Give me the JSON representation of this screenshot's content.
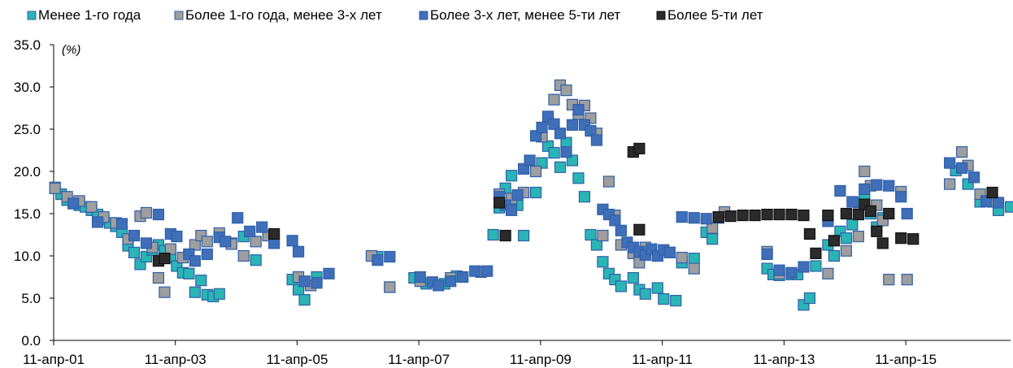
{
  "chart_data": {
    "type": "scatter",
    "title": "",
    "xlabel": "",
    "ylabel": "",
    "unit": "(%)",
    "ylim": [
      0,
      35
    ],
    "yticks": [
      "0.0",
      "5.0",
      "10.0",
      "15.0",
      "20.0",
      "25.0",
      "30.0",
      "35.0"
    ],
    "xlim": [
      2001.278,
      2017.0
    ],
    "xticks": [
      {
        "label": "11-апр-01",
        "x": 2001.278
      },
      {
        "label": "11-апр-03",
        "x": 2003.278
      },
      {
        "label": "11-апр-05",
        "x": 2005.278
      },
      {
        "label": "11-апр-07",
        "x": 2007.278
      },
      {
        "label": "11-апр-09",
        "x": 2009.278
      },
      {
        "label": "11-апр-11",
        "x": 2011.278
      },
      {
        "label": "11-апр-13",
        "x": 2013.278
      },
      {
        "label": "11-апр-15",
        "x": 2015.278
      }
    ],
    "grid": false,
    "legend_position": "top",
    "series": [
      {
        "name": "Менее 1-го года",
        "color": "#2ab5b5",
        "points": [
          [
            2001.3,
            18.1
          ],
          [
            2001.4,
            17.3
          ],
          [
            2001.5,
            16.6
          ],
          [
            2001.6,
            16.2
          ],
          [
            2001.7,
            16.0
          ],
          [
            2001.8,
            15.8
          ],
          [
            2001.9,
            15.4
          ],
          [
            2002.0,
            14.9
          ],
          [
            2002.1,
            14.3
          ],
          [
            2002.2,
            13.9
          ],
          [
            2002.3,
            13.5
          ],
          [
            2002.4,
            12.8
          ],
          [
            2002.5,
            11.2
          ],
          [
            2002.6,
            10.4
          ],
          [
            2002.7,
            9.0
          ],
          [
            2002.8,
            9.9
          ],
          [
            2002.9,
            10.7
          ],
          [
            2003.0,
            11.3
          ],
          [
            2003.1,
            10.6
          ],
          [
            2003.2,
            9.8
          ],
          [
            2003.3,
            8.8
          ],
          [
            2003.4,
            8.0
          ],
          [
            2003.5,
            7.9
          ],
          [
            2003.6,
            5.7
          ],
          [
            2003.7,
            7.1
          ],
          [
            2003.8,
            5.4
          ],
          [
            2003.9,
            5.2
          ],
          [
            2004.0,
            5.5
          ],
          [
            2004.2,
            11.5
          ],
          [
            2004.4,
            12.3
          ],
          [
            2004.6,
            9.5
          ],
          [
            2005.2,
            7.2
          ],
          [
            2005.3,
            6.0
          ],
          [
            2005.4,
            4.8
          ],
          [
            2005.6,
            7.5
          ],
          [
            2006.6,
            9.9
          ],
          [
            2006.8,
            6.3
          ],
          [
            2007.2,
            7.4
          ],
          [
            2007.4,
            6.7
          ],
          [
            2007.7,
            6.7
          ],
          [
            2007.9,
            7.6
          ],
          [
            2008.3,
            8.1
          ],
          [
            2008.5,
            12.5
          ],
          [
            2008.6,
            15.7
          ],
          [
            2008.7,
            18.0
          ],
          [
            2008.8,
            19.5
          ],
          [
            2008.9,
            16.0
          ],
          [
            2009.0,
            12.4
          ],
          [
            2009.2,
            17.5
          ],
          [
            2009.3,
            21.0
          ],
          [
            2009.4,
            23.0
          ],
          [
            2009.5,
            22.2
          ],
          [
            2009.6,
            20.5
          ],
          [
            2009.7,
            23.4
          ],
          [
            2009.8,
            21.3
          ],
          [
            2009.9,
            19.2
          ],
          [
            2010.0,
            17.0
          ],
          [
            2010.1,
            12.5
          ],
          [
            2010.2,
            11.3
          ],
          [
            2010.3,
            9.3
          ],
          [
            2010.4,
            7.9
          ],
          [
            2010.5,
            7.2
          ],
          [
            2010.6,
            6.4
          ],
          [
            2010.8,
            7.4
          ],
          [
            2010.9,
            6.0
          ],
          [
            2011.0,
            5.5
          ],
          [
            2011.2,
            6.2
          ],
          [
            2011.3,
            4.9
          ],
          [
            2011.5,
            4.7
          ],
          [
            2011.6,
            9.2
          ],
          [
            2011.8,
            9.7
          ],
          [
            2012.0,
            12.8
          ],
          [
            2012.1,
            12.0
          ],
          [
            2012.2,
            14.5
          ],
          [
            2013.0,
            8.5
          ],
          [
            2013.1,
            7.8
          ],
          [
            2013.2,
            7.7
          ],
          [
            2013.4,
            7.8
          ],
          [
            2013.5,
            7.8
          ],
          [
            2013.6,
            4.2
          ],
          [
            2013.7,
            5.0
          ],
          [
            2013.8,
            8.8
          ],
          [
            2014.0,
            11.3
          ],
          [
            2014.1,
            10.0
          ],
          [
            2014.2,
            12.9
          ],
          [
            2014.3,
            12.1
          ],
          [
            2014.4,
            13.7
          ],
          [
            2014.5,
            16.3
          ],
          [
            2014.6,
            17.2
          ],
          [
            2014.7,
            15.0
          ],
          [
            2014.8,
            13.4
          ],
          [
            2014.9,
            14.5
          ],
          [
            2016.1,
            20.1
          ],
          [
            2016.3,
            18.5
          ],
          [
            2016.5,
            16.4
          ],
          [
            2016.8,
            15.4
          ],
          [
            2017.0,
            15.8
          ]
        ]
      },
      {
        "name": "Более 1-го года, менее 3-х лет",
        "color": "#9e9e9e",
        "points": [
          [
            2001.3,
            18.0
          ],
          [
            2001.5,
            17.0
          ],
          [
            2001.7,
            16.5
          ],
          [
            2001.9,
            15.8
          ],
          [
            2002.1,
            14.6
          ],
          [
            2002.3,
            13.9
          ],
          [
            2002.5,
            12.0
          ],
          [
            2002.7,
            14.7
          ],
          [
            2002.8,
            15.1
          ],
          [
            2002.9,
            11.0
          ],
          [
            2003.0,
            7.4
          ],
          [
            2003.1,
            5.7
          ],
          [
            2003.2,
            10.8
          ],
          [
            2003.4,
            9.8
          ],
          [
            2003.6,
            11.3
          ],
          [
            2003.7,
            12.4
          ],
          [
            2003.8,
            11.7
          ],
          [
            2004.0,
            12.7
          ],
          [
            2004.2,
            11.4
          ],
          [
            2004.4,
            10.0
          ],
          [
            2004.6,
            11.7
          ],
          [
            2004.8,
            12.4
          ],
          [
            2005.3,
            7.5
          ],
          [
            2005.5,
            6.5
          ],
          [
            2006.5,
            10.0
          ],
          [
            2006.8,
            6.3
          ],
          [
            2007.3,
            7.0
          ],
          [
            2007.8,
            7.4
          ],
          [
            2008.3,
            8.1
          ],
          [
            2008.6,
            17.3
          ],
          [
            2008.8,
            16.8
          ],
          [
            2009.0,
            17.5
          ],
          [
            2009.2,
            20.0
          ],
          [
            2009.3,
            24.1
          ],
          [
            2009.4,
            26.2
          ],
          [
            2009.5,
            28.5
          ],
          [
            2009.6,
            30.2
          ],
          [
            2009.7,
            29.6
          ],
          [
            2009.8,
            27.9
          ],
          [
            2009.9,
            26.8
          ],
          [
            2010.0,
            27.8
          ],
          [
            2010.1,
            26.3
          ],
          [
            2010.2,
            24.5
          ],
          [
            2010.3,
            12.4
          ],
          [
            2010.4,
            18.8
          ],
          [
            2010.5,
            14.8
          ],
          [
            2010.6,
            11.3
          ],
          [
            2010.8,
            10.3
          ],
          [
            2010.9,
            9.2
          ],
          [
            2011.0,
            11.0
          ],
          [
            2011.2,
            10.0
          ],
          [
            2011.4,
            10.4
          ],
          [
            2011.6,
            9.8
          ],
          [
            2011.8,
            8.5
          ],
          [
            2012.1,
            13.3
          ],
          [
            2012.3,
            15.2
          ],
          [
            2013.0,
            10.5
          ],
          [
            2013.2,
            7.9
          ],
          [
            2014.0,
            7.9
          ],
          [
            2014.3,
            10.6
          ],
          [
            2014.5,
            12.3
          ],
          [
            2014.6,
            20.0
          ],
          [
            2014.7,
            18.3
          ],
          [
            2014.8,
            16.0
          ],
          [
            2014.9,
            14.2
          ],
          [
            2015.0,
            7.2
          ],
          [
            2015.2,
            17.6
          ],
          [
            2015.3,
            7.2
          ],
          [
            2016.0,
            18.5
          ],
          [
            2016.2,
            22.3
          ],
          [
            2016.3,
            20.7
          ],
          [
            2016.5,
            17.3
          ],
          [
            2016.7,
            16.4
          ]
        ]
      },
      {
        "name": "Более 3-х лет, менее 5-ти лет",
        "color": "#3f6fb8",
        "points": [
          [
            2001.6,
            16.2
          ],
          [
            2002.0,
            14.0
          ],
          [
            2002.4,
            13.8
          ],
          [
            2002.6,
            12.4
          ],
          [
            2002.8,
            11.5
          ],
          [
            2003.0,
            14.9
          ],
          [
            2003.2,
            12.6
          ],
          [
            2003.3,
            12.3
          ],
          [
            2003.5,
            10.2
          ],
          [
            2003.6,
            9.4
          ],
          [
            2003.8,
            10.2
          ],
          [
            2004.0,
            12.2
          ],
          [
            2004.1,
            11.7
          ],
          [
            2004.3,
            14.5
          ],
          [
            2004.5,
            12.9
          ],
          [
            2004.7,
            13.4
          ],
          [
            2004.9,
            11.5
          ],
          [
            2005.2,
            11.8
          ],
          [
            2005.3,
            10.5
          ],
          [
            2005.4,
            7.0
          ],
          [
            2005.6,
            6.8
          ],
          [
            2005.8,
            7.9
          ],
          [
            2006.6,
            9.5
          ],
          [
            2006.8,
            9.9
          ],
          [
            2007.3,
            7.5
          ],
          [
            2007.5,
            6.9
          ],
          [
            2007.6,
            6.5
          ],
          [
            2007.8,
            7.0
          ],
          [
            2008.0,
            7.5
          ],
          [
            2008.2,
            8.2
          ],
          [
            2008.4,
            8.2
          ],
          [
            2008.6,
            17.0
          ],
          [
            2008.7,
            16.0
          ],
          [
            2008.8,
            15.4
          ],
          [
            2008.9,
            17.2
          ],
          [
            2009.0,
            20.3
          ],
          [
            2009.1,
            21.3
          ],
          [
            2009.2,
            24.2
          ],
          [
            2009.3,
            25.2
          ],
          [
            2009.4,
            26.5
          ],
          [
            2009.5,
            25.6
          ],
          [
            2009.6,
            24.5
          ],
          [
            2009.7,
            22.3
          ],
          [
            2009.8,
            25.5
          ],
          [
            2009.9,
            27.3
          ],
          [
            2010.0,
            25.5
          ],
          [
            2010.1,
            24.8
          ],
          [
            2010.2,
            23.7
          ],
          [
            2010.3,
            15.5
          ],
          [
            2010.4,
            14.9
          ],
          [
            2010.5,
            14.2
          ],
          [
            2010.6,
            13.0
          ],
          [
            2010.7,
            11.6
          ],
          [
            2010.8,
            11.0
          ],
          [
            2010.9,
            10.5
          ],
          [
            2011.0,
            10.1
          ],
          [
            2011.1,
            10.8
          ],
          [
            2011.2,
            10.0
          ],
          [
            2011.3,
            10.7
          ],
          [
            2011.4,
            10.4
          ],
          [
            2011.6,
            14.6
          ],
          [
            2011.8,
            14.5
          ],
          [
            2012.0,
            14.4
          ],
          [
            2012.2,
            14.5
          ],
          [
            2013.0,
            10.2
          ],
          [
            2013.2,
            8.3
          ],
          [
            2013.4,
            8.0
          ],
          [
            2013.6,
            8.7
          ],
          [
            2014.0,
            14.1
          ],
          [
            2014.2,
            17.7
          ],
          [
            2014.4,
            16.4
          ],
          [
            2014.6,
            17.9
          ],
          [
            2014.8,
            18.4
          ],
          [
            2015.0,
            18.3
          ],
          [
            2015.2,
            17.0
          ],
          [
            2015.3,
            15.0
          ],
          [
            2016.0,
            21.0
          ],
          [
            2016.2,
            20.4
          ],
          [
            2016.4,
            19.3
          ],
          [
            2016.6,
            16.5
          ],
          [
            2016.8,
            16.3
          ]
        ]
      },
      {
        "name": "Более 5-ти лет",
        "color": "#2b2b2b",
        "points": [
          [
            2003.0,
            9.4
          ],
          [
            2003.1,
            9.7
          ],
          [
            2004.9,
            12.6
          ],
          [
            2008.6,
            16.3
          ],
          [
            2008.7,
            12.4
          ],
          [
            2010.8,
            22.3
          ],
          [
            2010.9,
            22.7
          ],
          [
            2010.9,
            13.1
          ],
          [
            2012.2,
            14.6
          ],
          [
            2012.4,
            14.7
          ],
          [
            2012.6,
            14.8
          ],
          [
            2012.8,
            14.8
          ],
          [
            2013.0,
            14.9
          ],
          [
            2013.2,
            14.9
          ],
          [
            2013.4,
            14.9
          ],
          [
            2013.6,
            14.8
          ],
          [
            2013.7,
            12.6
          ],
          [
            2013.8,
            10.3
          ],
          [
            2014.0,
            14.8
          ],
          [
            2014.1,
            11.8
          ],
          [
            2014.3,
            15.0
          ],
          [
            2014.5,
            14.9
          ],
          [
            2014.6,
            16.1
          ],
          [
            2014.7,
            15.3
          ],
          [
            2014.8,
            12.9
          ],
          [
            2014.9,
            11.5
          ],
          [
            2015.0,
            15.0
          ],
          [
            2015.2,
            12.1
          ],
          [
            2015.4,
            12.0
          ],
          [
            2016.7,
            17.5
          ]
        ]
      }
    ]
  }
}
